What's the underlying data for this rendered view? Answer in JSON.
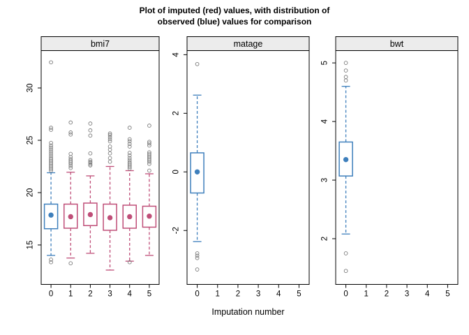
{
  "chart_data": {
    "type": "boxplot",
    "title_line1": "Plot of imputed (red) values, with distribution of",
    "title_line2": "observed (blue) values for comparison",
    "xlabel": "Imputation number",
    "x_categories": [
      "0",
      "1",
      "2",
      "3",
      "4",
      "5"
    ],
    "legend": "none",
    "grid": false,
    "colors": {
      "observed": "#3E7FBC",
      "imputed": "#BF4E78",
      "outlier": "#7B7B7B",
      "strip_bg": "#ECECEC",
      "frame": "#000000"
    },
    "panels": [
      {
        "name": "bmi7",
        "ylim": [
          11.23,
          33.57
        ],
        "yticks": [
          15,
          20,
          25,
          30
        ],
        "boxes": [
          {
            "x": "0",
            "group": "observed",
            "q1": 16.55,
            "median": 17.85,
            "q3": 18.9,
            "whisker_low": 14.0,
            "whisker_high": 21.9,
            "outliers_low": [
              13.6,
              13.35
            ],
            "outliers_high": [
              22.1,
              22.25,
              22.4,
              22.55,
              22.7,
              22.85,
              23.0,
              23.15,
              23.3,
              23.5,
              23.7,
              23.9,
              24.1,
              24.3,
              24.5,
              24.75,
              26.0,
              26.2,
              32.45
            ]
          },
          {
            "x": "1",
            "group": "imputed",
            "q1": 16.6,
            "median": 17.7,
            "q3": 18.9,
            "whisker_low": 13.75,
            "whisker_high": 21.95,
            "outliers_low": [
              13.25
            ],
            "outliers_high": [
              22.35,
              22.55,
              22.75,
              22.9,
              23.05,
              23.2,
              23.4,
              23.7,
              25.55,
              25.75,
              26.7
            ]
          },
          {
            "x": "2",
            "group": "imputed",
            "q1": 16.85,
            "median": 17.9,
            "q3": 19.0,
            "whisker_low": 14.2,
            "whisker_high": 21.6,
            "outliers_low": [],
            "outliers_high": [
              22.6,
              22.7,
              22.85,
              22.95,
              23.1,
              23.75,
              25.45,
              25.95,
              26.6
            ]
          },
          {
            "x": "3",
            "group": "imputed",
            "q1": 16.4,
            "median": 17.6,
            "q3": 18.9,
            "whisker_low": 12.6,
            "whisker_high": 22.5,
            "outliers_low": [],
            "outliers_high": [
              22.95,
              23.3,
              23.75,
              24.1,
              24.4,
              24.9,
              25.1,
              25.3,
              25.5,
              25.65
            ]
          },
          {
            "x": "4",
            "group": "imputed",
            "q1": 16.6,
            "median": 17.7,
            "q3": 18.8,
            "whisker_low": 13.45,
            "whisker_high": 22.1,
            "outliers_low": [
              13.35
            ],
            "outliers_high": [
              22.3,
              22.45,
              22.6,
              22.75,
              22.9,
              23.1,
              23.3,
              23.55,
              23.8,
              24.4,
              24.65,
              24.9,
              25.1,
              26.2
            ]
          },
          {
            "x": "5",
            "group": "imputed",
            "q1": 16.7,
            "median": 17.75,
            "q3": 18.7,
            "whisker_low": 14.0,
            "whisker_high": 21.8,
            "outliers_low": [],
            "outliers_high": [
              22.1,
              22.75,
              22.95,
              23.1,
              23.25,
              23.4,
              23.55,
              23.7,
              23.85,
              24.5,
              24.7,
              24.85,
              26.4
            ]
          }
        ]
      },
      {
        "name": "matage",
        "ylim": [
          -3.84,
          4.14
        ],
        "yticks": [
          -2,
          0,
          2,
          4
        ],
        "boxes": [
          {
            "x": "0",
            "group": "observed",
            "q1": -0.72,
            "median": 0.0,
            "q3": 0.65,
            "whisker_low": -2.38,
            "whisker_high": 2.62,
            "outliers_low": [
              -2.78,
              -2.86,
              -2.94,
              -3.33
            ],
            "outliers_high": [
              3.68
            ]
          }
        ]
      },
      {
        "name": "bwt",
        "ylim": [
          1.22,
          5.21
        ],
        "yticks": [
          2,
          3,
          4,
          5
        ],
        "boxes": [
          {
            "x": "0",
            "group": "observed",
            "q1": 3.07,
            "median": 3.35,
            "q3": 3.65,
            "whisker_low": 2.08,
            "whisker_high": 4.6,
            "outliers_low": [
              1.75,
              1.45
            ],
            "outliers_high": [
              5.0,
              4.87,
              4.76,
              4.7
            ]
          }
        ]
      }
    ]
  }
}
